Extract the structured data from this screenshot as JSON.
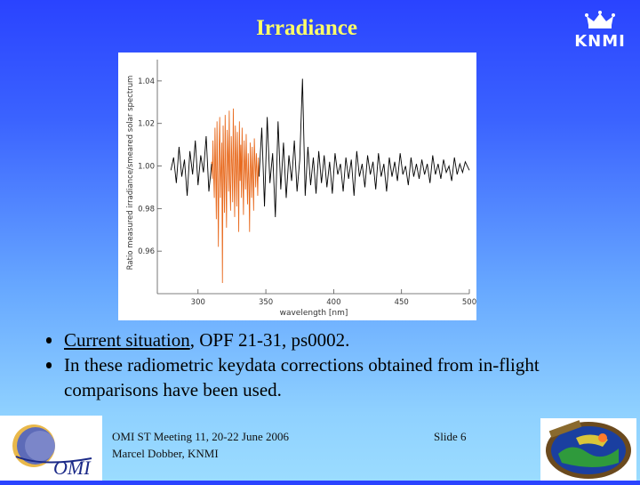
{
  "slide": {
    "title": "Irradiance",
    "logo_text": "KNMI",
    "bullets": [
      {
        "parts": [
          {
            "text": "Current situation",
            "underline": true
          },
          {
            "text": ", OPF 21-31, ps0002.",
            "underline": false
          }
        ]
      },
      {
        "parts": [
          {
            "text": "In these radiometric keydata corrections obtained from in-flight comparisons have been used.",
            "underline": false
          }
        ]
      }
    ],
    "footer": {
      "meeting": "OMI ST Meeting 11, 20-22 June 2006",
      "author": "Marcel Dobber, KNMI",
      "slide_label": "Slide 6",
      "omi_logo_text": "OMI"
    },
    "colors": {
      "title": "#ffff66",
      "series_black": "#000000",
      "series_orange": "#e86a1e"
    }
  },
  "chart_data": {
    "type": "line",
    "xlabel": "wavelength [nm]",
    "ylabel": "Ratio measured irradiance/smeared solar spectrum",
    "xlim": [
      270,
      500
    ],
    "ylim": [
      0.94,
      1.05
    ],
    "xticks": [
      "300",
      "350",
      "400",
      "450",
      "500"
    ],
    "yticks": [
      "1.04",
      "1.02",
      "1.00",
      "0.98",
      "0.96"
    ],
    "grid": false,
    "series": [
      {
        "color": "#e86a1e",
        "x": [
          310,
          310.5,
          311,
          311.5,
          312,
          312.5,
          313,
          313.5,
          314,
          314.5,
          315,
          315.5,
          316,
          316.5,
          317,
          317.5,
          318,
          318.5,
          319,
          319.5,
          320,
          320.5,
          321,
          321.5,
          322,
          322.5,
          323,
          323.5,
          324,
          324.5,
          325,
          325.5,
          326,
          326.5,
          327,
          327.5,
          328,
          328.5,
          329,
          329.5,
          330,
          330.5,
          331,
          331.5,
          332,
          332.5,
          333,
          333.5,
          334,
          334.5,
          335,
          335.5,
          336,
          336.5,
          337,
          337.5,
          338,
          338.5,
          339,
          339.5,
          340,
          340.5,
          341,
          341.5,
          342,
          342.5,
          343,
          343.5,
          344,
          344.5,
          345
        ],
        "y": [
          1.002,
          0.994,
          1.012,
          0.996,
          0.985,
          1.018,
          0.999,
          0.975,
          1.021,
          0.995,
          0.962,
          1.008,
          1.023,
          0.985,
          0.999,
          1.011,
          0.945,
          1.019,
          0.998,
          0.978,
          1.024,
          0.996,
          0.971,
          1.017,
          1.005,
          0.988,
          1.026,
          0.992,
          0.979,
          1.014,
          1.001,
          0.983,
          1.027,
          0.997,
          0.976,
          1.019,
          1.004,
          0.981,
          1.016,
          0.999,
          0.969,
          1.021,
          0.993,
          1.01,
          0.985,
          1.018,
          0.996,
          0.977,
          1.012,
          1.001,
          0.989,
          1.015,
          0.997,
          0.982,
          1.006,
          0.994,
          0.969,
          1.011,
          0.999,
          0.985,
          1.009,
          0.996,
          0.979,
          1.013,
          1.002,
          0.99,
          1.006,
          0.998,
          0.986,
          1.004,
          0.995
        ]
      },
      {
        "color": "#000000",
        "x": [
          280,
          282,
          284,
          286,
          288,
          290,
          292,
          294,
          296,
          298,
          300,
          302,
          304,
          306,
          308,
          310,
          345,
          347,
          349,
          351,
          353,
          355,
          357,
          359,
          361,
          363,
          365,
          367,
          369,
          371,
          373,
          375,
          377,
          379,
          381,
          383,
          385,
          387,
          389,
          391,
          393,
          395,
          397,
          399,
          401,
          403,
          405,
          407,
          409,
          411,
          413,
          415,
          417,
          419,
          421,
          423,
          425,
          427,
          429,
          431,
          433,
          435,
          437,
          439,
          441,
          443,
          445,
          447,
          449,
          451,
          453,
          455,
          457,
          459,
          461,
          463,
          465,
          467,
          469,
          471,
          473,
          475,
          477,
          479,
          481,
          483,
          485,
          487,
          489,
          491,
          493,
          495,
          497,
          500
        ],
        "y": [
          0.998,
          1.004,
          0.992,
          1.009,
          0.995,
          1.003,
          0.986,
          1.007,
          0.996,
          1.012,
          0.991,
          1.005,
          0.997,
          1.014,
          0.988,
          1.001,
          0.995,
          1.018,
          0.981,
          1.023,
          0.992,
          1.006,
          0.976,
          1.021,
          0.989,
          1.011,
          0.985,
          1.005,
          0.993,
          1.012,
          0.988,
          1.003,
          1.041,
          0.986,
          1.009,
          0.991,
          1.004,
          0.987,
          1.007,
          0.992,
          1.005,
          0.99,
          1.002,
          0.987,
          1.006,
          0.996,
          1.001,
          0.988,
          1.004,
          0.994,
          1.003,
          0.986,
          1.007,
          0.995,
          1.001,
          0.99,
          1.005,
          0.996,
          1.002,
          0.989,
          1.006,
          0.995,
          1.001,
          0.988,
          1.004,
          0.995,
          1.002,
          0.993,
          1.006,
          0.996,
          1.0,
          0.991,
          1.004,
          0.995,
          1.001,
          0.994,
          1.003,
          0.996,
          1.001,
          0.992,
          1.005,
          0.996,
          1.001,
          0.994,
          1.003,
          0.997,
          1.0,
          0.993,
          1.004,
          0.996,
          1.001,
          0.997,
          1.002,
          0.998
        ]
      }
    ]
  }
}
